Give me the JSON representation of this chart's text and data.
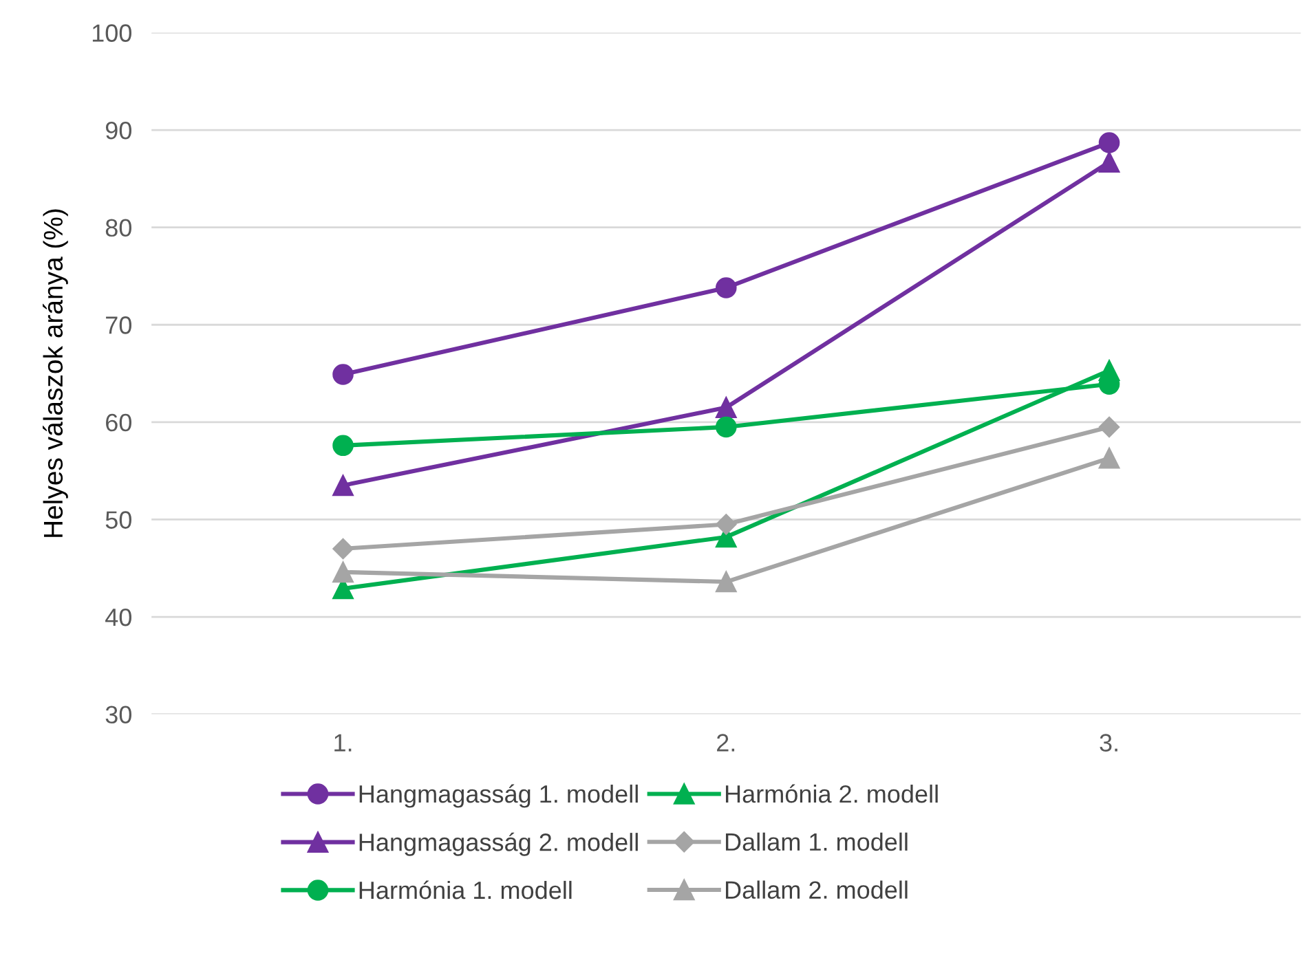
{
  "chart_data": {
    "type": "line",
    "ylabel": "Helyes válaszok aránya (%)",
    "categories": [
      "1.",
      "2.",
      "3."
    ],
    "series": [
      {
        "name": "Hangmagasság 1. modell",
        "color": "#7030a0",
        "marker": "circle",
        "values": [
          64.9,
          73.8,
          88.7
        ]
      },
      {
        "name": "Hangmagasság 2. modell",
        "color": "#7030a0",
        "marker": "triangle",
        "values": [
          53.5,
          61.5,
          86.7
        ]
      },
      {
        "name": "Harmónia 1. modell",
        "color": "#00b050",
        "marker": "circle",
        "values": [
          57.6,
          59.5,
          63.9
        ]
      },
      {
        "name": "Harmónia 2. modell",
        "color": "#00b050",
        "marker": "triangle",
        "values": [
          42.9,
          48.2,
          65.3
        ]
      },
      {
        "name": "Dallam 1. modell",
        "color": "#a5a5a5",
        "marker": "diamond",
        "values": [
          47.0,
          49.5,
          59.5
        ]
      },
      {
        "name": "Dallam 2. modell",
        "color": "#a5a5a5",
        "marker": "triangle",
        "values": [
          44.6,
          43.6,
          56.3
        ]
      }
    ],
    "ylim": [
      30,
      100
    ],
    "yticks": [
      30,
      40,
      50,
      60,
      70,
      80,
      90,
      100
    ],
    "grid": "y",
    "legend": "bottom",
    "line_style": "solid"
  }
}
